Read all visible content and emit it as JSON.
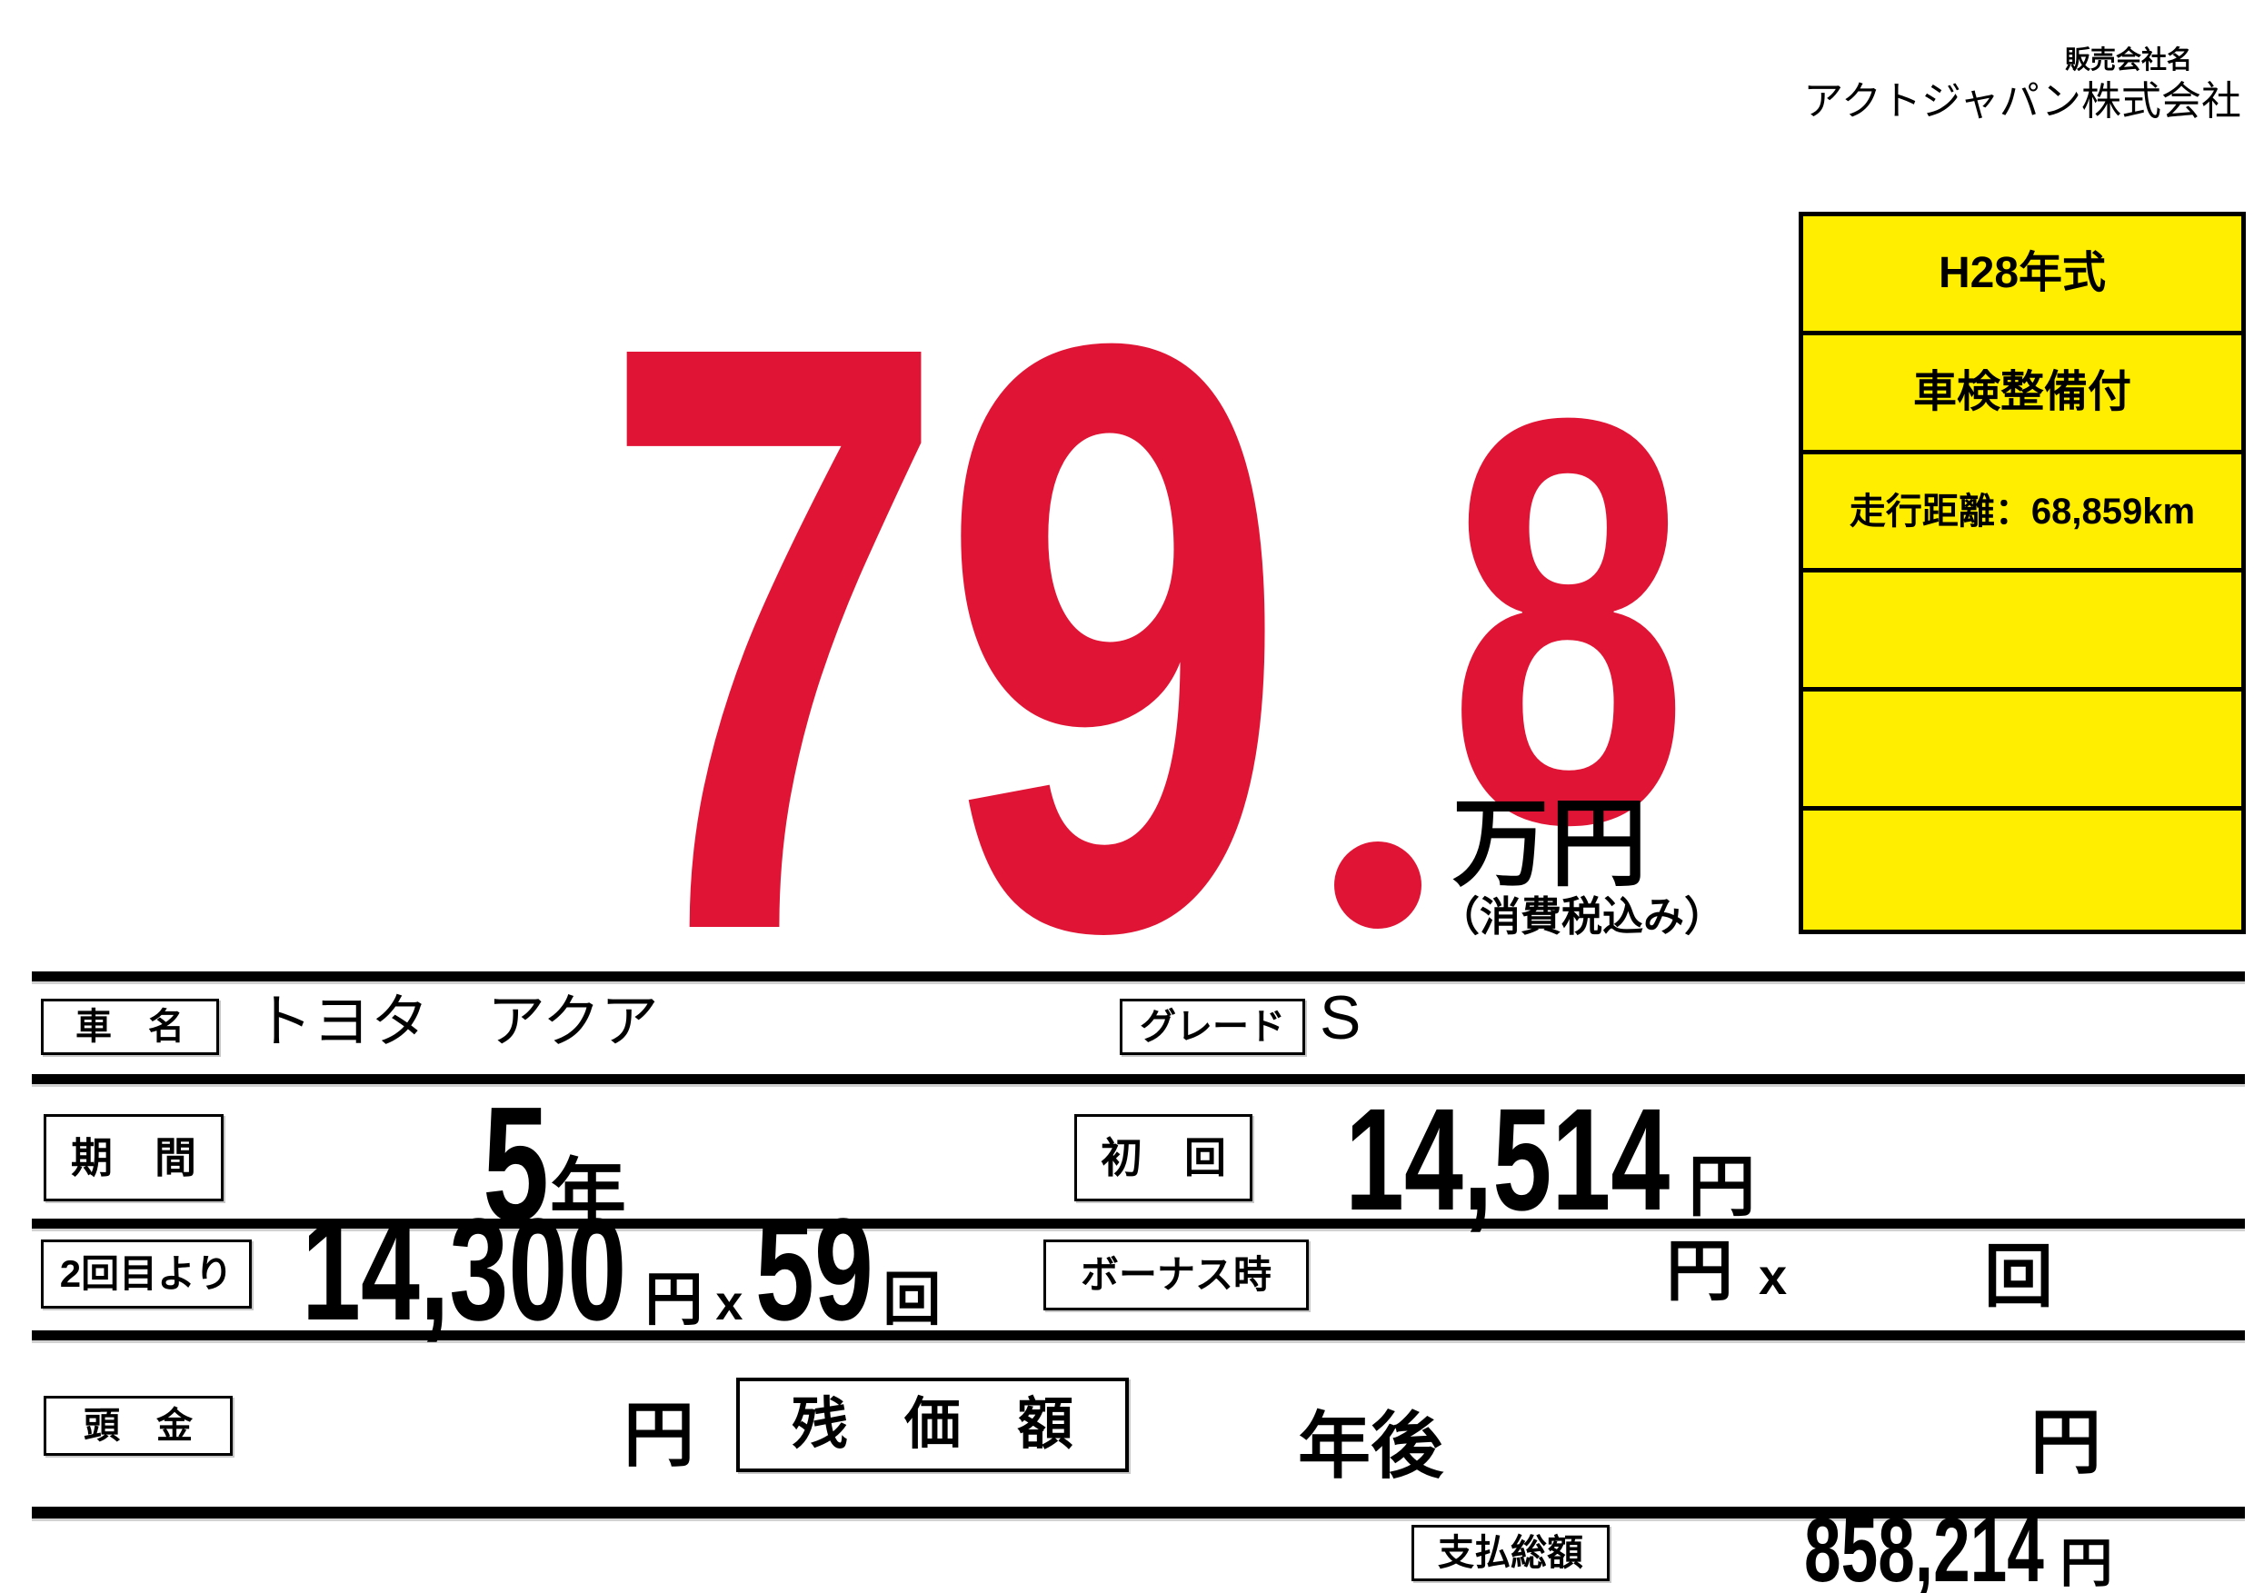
{
  "seller": {
    "label": "販売会社名",
    "name": "アクトジャパン株式会社"
  },
  "price": {
    "integer": "79",
    "decimal_point": ".",
    "decimal": "8",
    "unit": "万円",
    "tax_note": "（消費税込み）"
  },
  "info_panel": {
    "rows": [
      {
        "text": "H28年式"
      },
      {
        "text": "車検整備付"
      },
      {
        "text": "走行距離：68,859km"
      },
      {
        "text": ""
      },
      {
        "text": ""
      },
      {
        "text": ""
      }
    ]
  },
  "table": {
    "row_car": {
      "label": "車　名",
      "value": "トヨタ　アクア",
      "grade_label": "グレード",
      "grade_value": "S"
    },
    "row_term": {
      "label": "期　間",
      "value_number": "5",
      "value_unit": "年",
      "first_label": "初　回",
      "first_value": "14,514",
      "first_unit": "円"
    },
    "row_second": {
      "label": "2回目より",
      "amount": "14,300",
      "amount_unit": "円",
      "times_sign": "x",
      "count": "59",
      "count_unit": "回",
      "bonus_label": "ボーナス時",
      "bonus_yen_unit": "円",
      "bonus_times_sign": "x",
      "bonus_count_unit": "回"
    },
    "row_down": {
      "label": "頭　金",
      "down_unit": "円",
      "residual_label": "残　価　額",
      "residual_after": "年後",
      "residual_unit": "円"
    },
    "row_total": {
      "label": "支払総額",
      "value": "858,214",
      "unit": "円"
    }
  },
  "colors": {
    "price_red": "#e01535",
    "panel_yellow": "#ffee00",
    "ink_black": "#000000"
  }
}
